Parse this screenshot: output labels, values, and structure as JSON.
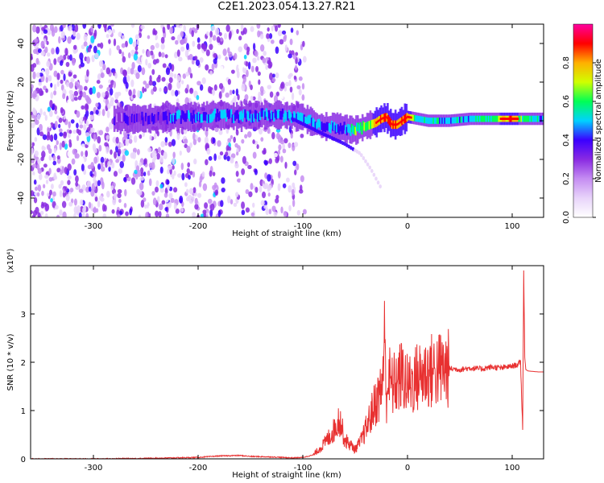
{
  "title": "C2E1.2023.054.13.27.R21",
  "colors": {
    "snr_line": "#e83030",
    "colormap": [
      "#ffffff",
      "#e8d4fa",
      "#c58df2",
      "#8a2be2",
      "#3b00ff",
      "#00d2ff",
      "#00ff55",
      "#d0ff00",
      "#ffb000",
      "#ff0000",
      "#ff00a0"
    ]
  },
  "chart_data": [
    {
      "type": "heatmap",
      "xlabel": "Height of straight line (km)",
      "ylabel": "Frequency (Hz)",
      "xlim": [
        -360,
        130
      ],
      "ylim": [
        -50,
        50
      ],
      "x_ticks": [
        -300,
        -200,
        -100,
        0,
        100
      ],
      "x_tick_labels": [
        "-300",
        "-200",
        "-100",
        "0",
        "100"
      ],
      "y_ticks": [
        -40,
        -20,
        0,
        20,
        40
      ],
      "y_tick_labels": [
        "-40",
        "-20",
        "0",
        "20",
        "40"
      ],
      "colorbar": {
        "label": "Normalized spectral amplitude",
        "range": [
          0,
          1
        ],
        "ticks": [
          0.0,
          0.2,
          0.4,
          0.6,
          0.8
        ],
        "tick_labels": [
          "0.0",
          "0.2",
          "0.4",
          "0.6",
          "0.8"
        ]
      },
      "ridge": {
        "x": [
          -280,
          -250,
          -220,
          -200,
          -180,
          -160,
          -140,
          -120,
          -100,
          -90,
          -80,
          -70,
          -60,
          -50,
          -40,
          -30,
          -25,
          -20,
          -15,
          -10,
          -5,
          0,
          10,
          20,
          40,
          60,
          80,
          100,
          110,
          120,
          130
        ],
        "frequency": [
          1,
          1,
          2,
          2,
          3,
          2,
          3,
          3,
          2,
          -1,
          -3,
          -3,
          -4,
          -5,
          -3,
          -1,
          1,
          2,
          -2,
          -2,
          0,
          2,
          1,
          0,
          0,
          1,
          1,
          1,
          1,
          1,
          1
        ],
        "amplitude": [
          0.3,
          0.35,
          0.4,
          0.45,
          0.45,
          0.45,
          0.45,
          0.45,
          0.45,
          0.45,
          0.45,
          0.45,
          0.45,
          0.6,
          0.6,
          0.75,
          0.85,
          0.85,
          0.85,
          0.85,
          0.85,
          0.85,
          0.5,
          0.5,
          0.5,
          0.5,
          0.6,
          0.85,
          0.6,
          0.5,
          0.5
        ]
      },
      "secondary_branch": {
        "x": [
          -110,
          -80,
          -60,
          -45,
          -35,
          -25
        ],
        "frequency": [
          1,
          -7,
          -12,
          -17,
          -25,
          -35
        ]
      },
      "noise_region": {
        "x_start": -360,
        "x_end": -108,
        "amplitude": 0.2
      }
    },
    {
      "type": "line",
      "xlabel": "Height of straight line (km)",
      "ylabel": "SNR (10 * v/v)",
      "y_scale_label": "(x10⁴)",
      "xlim": [
        -360,
        130
      ],
      "ylim": [
        0,
        4
      ],
      "x_ticks": [
        -300,
        -200,
        -100,
        0,
        100
      ],
      "x_tick_labels": [
        "-300",
        "-200",
        "-100",
        "0",
        "100"
      ],
      "y_ticks": [
        0,
        1,
        2,
        3
      ],
      "y_tick_labels": [
        "0",
        "1",
        "2",
        "3"
      ],
      "series": [
        {
          "x": [
            -360,
            -300,
            -250,
            -200,
            -180,
            -160,
            -150,
            -130,
            -120,
            -110,
            -100,
            -90,
            -80,
            -70,
            -65,
            -60,
            -55,
            -50,
            -45,
            -40,
            -35,
            -30,
            -25,
            -22,
            -20,
            -18,
            -15,
            -10,
            -5,
            0,
            5,
            10,
            20,
            30,
            40,
            50,
            60,
            70,
            80,
            90,
            100,
            105,
            108,
            110,
            111,
            112,
            113,
            115,
            120,
            125,
            130
          ],
          "values": [
            0.0,
            0.0,
            0.01,
            0.03,
            0.06,
            0.07,
            0.05,
            0.04,
            0.03,
            0.02,
            0.03,
            0.08,
            0.3,
            0.6,
            0.85,
            0.4,
            0.3,
            0.2,
            0.35,
            0.6,
            0.9,
            1.2,
            1.4,
            2.4,
            1.3,
            1.7,
            1.5,
            1.6,
            1.75,
            1.5,
            1.6,
            1.7,
            1.8,
            1.85,
            1.87,
            1.85,
            1.88,
            1.86,
            1.9,
            1.88,
            1.92,
            1.95,
            2.0,
            0.6,
            3.9,
            2.1,
            1.85,
            1.82,
            1.81,
            1.8,
            1.8
          ]
        }
      ]
    }
  ]
}
